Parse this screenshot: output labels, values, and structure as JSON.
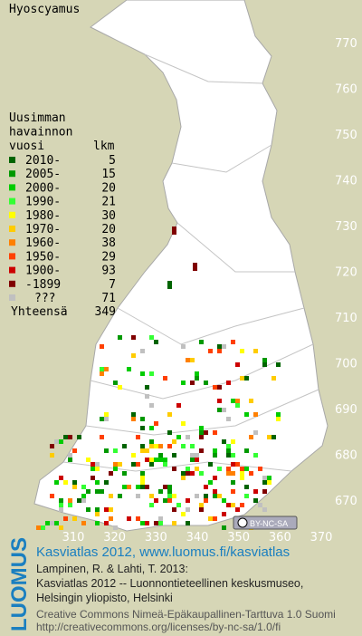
{
  "map": {
    "title": "Hyoscyamus",
    "legend": {
      "header": [
        "Uusimman",
        "havainnon",
        "vuosi"
      ],
      "count_header": "lkm",
      "items": [
        {
          "label": "2010-",
          "count": "5",
          "color": "#006400"
        },
        {
          "label": "2005-",
          "count": "15",
          "color": "#009900"
        },
        {
          "label": "2000-",
          "count": "20",
          "color": "#00cc00"
        },
        {
          "label": "1990-",
          "count": "21",
          "color": "#33ff33"
        },
        {
          "label": "1980-",
          "count": "30",
          "color": "#ffff00"
        },
        {
          "label": "1970-",
          "count": "20",
          "color": "#ffcc00"
        },
        {
          "label": "1960-",
          "count": "38",
          "color": "#ff8000"
        },
        {
          "label": "1950-",
          "count": "29",
          "color": "#ff4000"
        },
        {
          "label": "1900-",
          "count": "93",
          "color": "#cc0000"
        },
        {
          "label": "-1899",
          "count": "7",
          "color": "#800000"
        },
        {
          "label": "???",
          "count": "71",
          "color": "#c0c0c0"
        }
      ],
      "total_label": "Yhteensä",
      "total": "349"
    },
    "yticks": [
      770,
      760,
      750,
      740,
      730,
      720,
      710,
      700,
      690,
      680,
      670
    ],
    "xticks": [
      310,
      320,
      330,
      340,
      350,
      360,
      370
    ],
    "license_badge": "BY-NC-SA",
    "footer": {
      "logo": "LUOMUS",
      "link": "Kasviatlas 2012, www.luomus.fi/kasviatlas",
      "citation": [
        "Lampinen, R. & Lahti, T. 2013:",
        "Kasviatlas 2012 -- Luonnontieteellinen keskusmuseo,",
        "Helsingin yliopisto, Helsinki"
      ],
      "license": [
        "Creative Commons Nimeä-Epäkaupallinen-Tarttuva 1.0 Suomi",
        "http://creativecommons.org/licenses/by-nc-sa/1.0/fi"
      ]
    }
  }
}
